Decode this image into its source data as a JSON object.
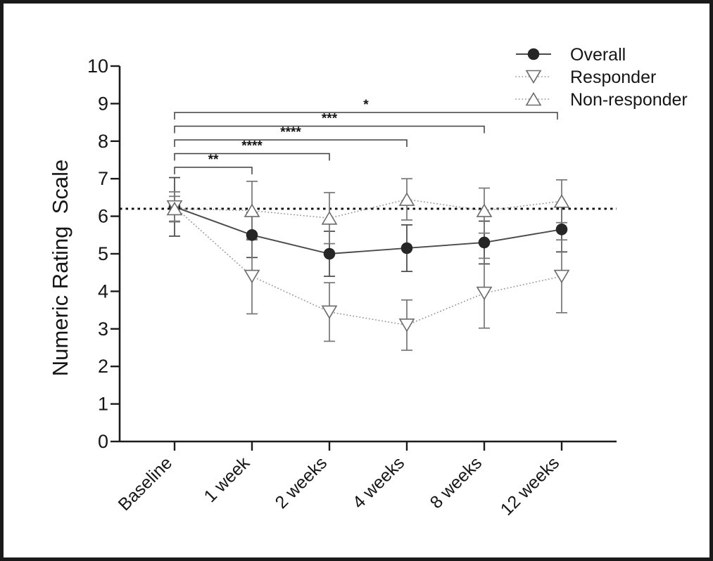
{
  "figure": {
    "kind": "scientific line chart with error bars",
    "background_color": "#ffffff",
    "frame_border_color": "#1a1a1a"
  },
  "chart_data": {
    "type": "line",
    "title": "",
    "xlabel": "",
    "ylabel": "Numeric Rating  Scale",
    "ylim": [
      0,
      10
    ],
    "yticks": [
      0,
      1,
      2,
      3,
      4,
      5,
      6,
      7,
      8,
      9,
      10
    ],
    "grid": "off",
    "categories": [
      "Baseline",
      "1 week",
      "2 weeks",
      "4 weeks",
      "8 weeks",
      "12 weeks"
    ],
    "reference_line": {
      "value": 6.2,
      "style": "dotted",
      "color": "#0d0d0d"
    },
    "series": [
      {
        "name": "Overall",
        "marker": "filled-circle",
        "line_style": "solid",
        "color": "#3c3c3c",
        "values": [
          6.25,
          5.5,
          5.0,
          5.15,
          5.3,
          5.65
        ],
        "error": [
          0.78,
          0.6,
          0.6,
          0.62,
          0.57,
          0.6
        ]
      },
      {
        "name": "Responder",
        "marker": "open-triangle-down",
        "line_style": "dotted",
        "color": "#9b9b9b",
        "values": [
          6.25,
          4.4,
          3.45,
          3.1,
          3.95,
          4.4
        ],
        "error": [
          0.4,
          1.0,
          0.78,
          0.67,
          0.93,
          0.97
        ]
      },
      {
        "name": "Non-responder",
        "marker": "open-triangle-up",
        "line_style": "dotted",
        "color": "#9b9b9b",
        "values": [
          6.2,
          6.15,
          5.95,
          6.45,
          6.15,
          6.4
        ],
        "error": [
          0.33,
          0.78,
          0.68,
          0.55,
          0.6,
          0.57
        ]
      }
    ],
    "significance_brackets": [
      {
        "from": "Baseline",
        "to": "1 week",
        "label": "**"
      },
      {
        "from": "Baseline",
        "to": "2 weeks",
        "label": "****"
      },
      {
        "from": "Baseline",
        "to": "4 weeks",
        "label": "****"
      },
      {
        "from": "Baseline",
        "to": "8 weeks",
        "label": "***"
      },
      {
        "from": "Baseline",
        "to": "12 weeks",
        "label": "*"
      }
    ],
    "legend": {
      "position": "top-right",
      "entries": [
        "Overall",
        "Responder",
        "Non-responder"
      ]
    }
  }
}
